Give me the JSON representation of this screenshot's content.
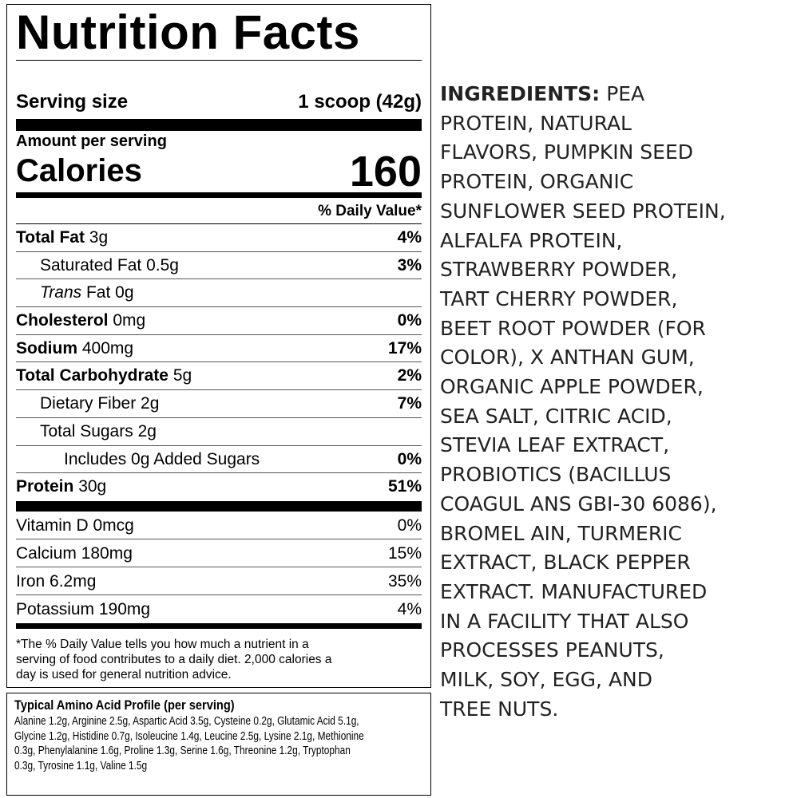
{
  "label": {
    "title": "Nutrition Facts",
    "serving_size_label": "Serving size",
    "serving_size": "1 scoop (42g)",
    "amount_per_serving": "Amount per serving",
    "calories_label": "Calories",
    "calories": "160",
    "dv_header": "% Daily Value*",
    "nutrients": [
      {
        "name": "Total Fat",
        "amount": "3g",
        "dv": "4%"
      },
      {
        "name": "Saturated Fat",
        "amount": "0.5g",
        "dv": "3%"
      },
      {
        "name_italic": "Trans",
        "name": "Fat",
        "amount": "0g"
      },
      {
        "name": "Cholesterol",
        "amount": "0mg",
        "dv": "0%"
      },
      {
        "name": "Sodium",
        "amount": "400mg",
        "dv": "17%"
      },
      {
        "name": "Total Carbohydrate",
        "amount": "5g",
        "dv": "2%"
      },
      {
        "name": "Dietary Fiber",
        "amount": "2g",
        "dv": "7%"
      },
      {
        "name": "Total Sugars",
        "amount": "2g"
      },
      {
        "name": "Includes 0g Added Sugars",
        "dv": "0%"
      },
      {
        "name": "Protein",
        "amount": "30g",
        "dv": "51%"
      }
    ],
    "vitamins": [
      {
        "name": "Vitamin D 0mcg",
        "dv": "0%"
      },
      {
        "name": "Calcium 180mg",
        "dv": "15%"
      },
      {
        "name": "Iron 6.2mg",
        "dv": "35%"
      },
      {
        "name": "Potassium 190mg",
        "dv": "4%"
      }
    ],
    "footnote": [
      "*The % Daily Value tells you how much a nutrient in a",
      "serving of food contributes to a daily diet. 2,000 calories a",
      "day is used for general nutrition advice."
    ]
  },
  "amino": {
    "title": "Typical Amino Acid Profile (per serving)",
    "lines": [
      "Alanine 1.2g, Arginine 2.5g, Aspartic Acid 3.5g, Cysteine 0.2g, Glutamic Acid 5.1g,",
      "Glycine 1.2g, Histidine 0.7g, Isoleucine 1.4g,  Leucine 2.5g, Lysine 2.1g, Methionine",
      "0.3g, Phenylalanine 1.6g,  Proline 1.3g, Serine 1.6g, Threonine 1.2g, Tryptophan",
      "0.3g, Tyrosine 1.1g, Valine 1.5g"
    ]
  },
  "ingredients": {
    "label": "INGREDIENTS:",
    "lines": [
      "PEA",
      "PROTEIN, NATURAL",
      "FLAVORS, PUMPKIN SEED",
      "PROTEIN, ORGANIC",
      "SUNFLOWER SEED PROTEIN,",
      "ALFALFA PROTEIN,",
      "STRAWBERRY POWDER,",
      "TART CHERRY POWDER,",
      "BEET ROOT POWDER (FOR",
      "COLOR), X ANTHAN GUM,",
      "ORGANIC APPLE POWDER,",
      "SEA SALT, CITRIC ACID,",
      "STEVIA LEAF EXTRACT,",
      "PROBIOTICS (BACILLUS",
      "COAGUL ANS GBI-30 6086),",
      "BROMEL AIN, TURMERIC",
      "EXTRACT, BLACK PEPPER",
      "EXTRACT. MANUFACTURED",
      "IN A FACILITY THAT ALSO",
      "PROCESSES PEANUTS,",
      "MILK, SOY, EGG, AND",
      "TREE NUTS."
    ]
  }
}
